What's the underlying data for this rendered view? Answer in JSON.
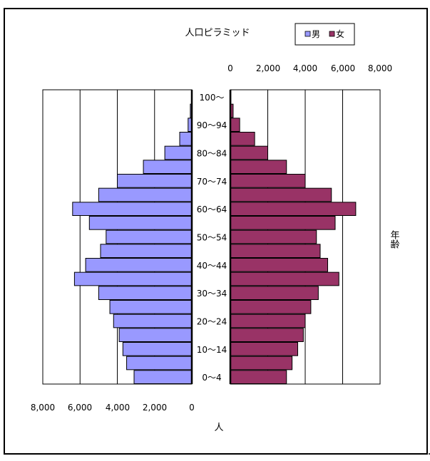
{
  "chart_data": {
    "type": "bar",
    "orientation": "horizontal",
    "layout": "population-pyramid",
    "title": "人口ピラミッド",
    "xlabel": "人",
    "ylabel": "年齢",
    "xlim": [
      0,
      8000
    ],
    "top_ticks": [
      "0",
      "2,000",
      "4,000",
      "6,000",
      "8,000"
    ],
    "bottom_ticks": [
      "8,000",
      "6,000",
      "4,000",
      "2,000",
      "0"
    ],
    "grid": true,
    "legend_position": "top-right",
    "categories": [
      "0～4",
      "5～9",
      "10～14",
      "15～19",
      "20～24",
      "25～29",
      "30～34",
      "35～39",
      "40～44",
      "45～49",
      "50～54",
      "55～59",
      "60～64",
      "65～69",
      "70～74",
      "75～79",
      "80～84",
      "85～89",
      "90～94",
      "95～99",
      "100～"
    ],
    "tick_label_indices": [
      0,
      2,
      4,
      6,
      8,
      10,
      12,
      14,
      16,
      18,
      20
    ],
    "series": [
      {
        "name": "男",
        "color": "#9999ff",
        "values": [
          3100,
          3500,
          3700,
          3900,
          4200,
          4400,
          5000,
          6300,
          5700,
          4900,
          4600,
          5500,
          6400,
          5000,
          4000,
          2600,
          1450,
          650,
          200,
          80,
          20
        ]
      },
      {
        "name": "女",
        "color": "#993366",
        "values": [
          3000,
          3300,
          3600,
          3900,
          4000,
          4300,
          4700,
          5800,
          5200,
          4800,
          4600,
          5600,
          6700,
          5400,
          4000,
          3000,
          2000,
          1300,
          500,
          150,
          30
        ]
      }
    ]
  }
}
